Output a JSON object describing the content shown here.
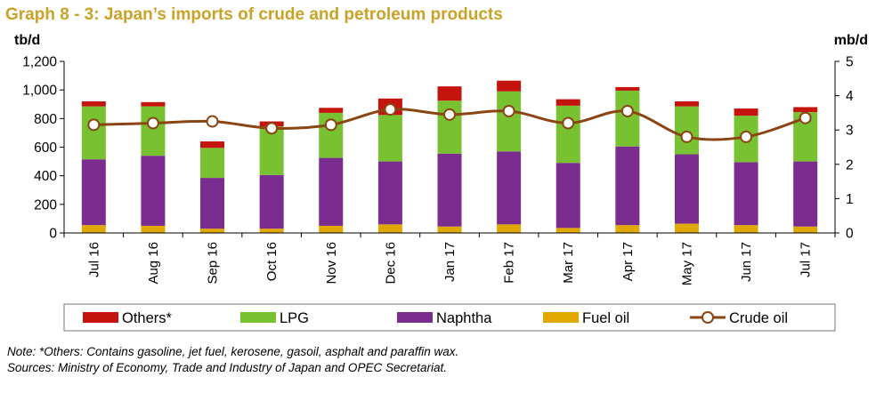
{
  "chart_data": {
    "type": "bar",
    "stacked": true,
    "title": "Graph 8 - 3: Japan’s imports of crude and petroleum products",
    "ylabel_left": "tb/d",
    "ylabel_right": "mb/d",
    "ylim_left": [
      0,
      1200
    ],
    "yticks_left": [
      0,
      200,
      400,
      600,
      800,
      1000,
      1200
    ],
    "ytick_labels_left": [
      "0",
      "200",
      "400",
      "600",
      "800",
      "1,000",
      "1,200"
    ],
    "ylim_right": [
      0,
      5
    ],
    "yticks_right": [
      0,
      1,
      2,
      3,
      4,
      5
    ],
    "ytick_labels_right": [
      "0",
      "1",
      "2",
      "3",
      "4",
      "5"
    ],
    "grid": false,
    "legend_placement": "bottom",
    "categories": [
      "Jul 16",
      "Aug 16",
      "Sep 16",
      "Oct 16",
      "Nov 16",
      "Dec 16",
      "Jan 17",
      "Feb 17",
      "Mar 17",
      "Apr 17",
      "May 17",
      "Jun 17",
      "Jul 17"
    ],
    "series": [
      {
        "name": "Fuel oil",
        "color": "#e0a800",
        "axis": "left",
        "values": [
          55,
          50,
          30,
          30,
          50,
          60,
          45,
          60,
          35,
          55,
          65,
          55,
          45
        ]
      },
      {
        "name": "Naphtha",
        "color": "#7b2c8f",
        "axis": "left",
        "values": [
          460,
          490,
          355,
          375,
          475,
          440,
          510,
          510,
          455,
          550,
          485,
          440,
          455
        ]
      },
      {
        "name": "LPG",
        "color": "#78c130",
        "axis": "left",
        "values": [
          370,
          345,
          210,
          340,
          315,
          325,
          370,
          420,
          400,
          390,
          335,
          325,
          345
        ]
      },
      {
        "name": "Others*",
        "color": "#c5140d",
        "axis": "left",
        "values": [
          35,
          30,
          45,
          35,
          35,
          115,
          100,
          75,
          45,
          25,
          35,
          50,
          35
        ]
      },
      {
        "name": "Crude oil",
        "type": "line",
        "color": "#8b4513",
        "axis": "right",
        "values": [
          3.15,
          3.2,
          3.25,
          3.05,
          3.15,
          3.6,
          3.45,
          3.55,
          3.2,
          3.55,
          2.8,
          2.8,
          3.35
        ]
      }
    ],
    "legend_order": [
      "Others*",
      "LPG",
      "Naphtha",
      "Fuel oil",
      "Crude oil"
    ]
  },
  "notes": [
    "Note: *Others: Contains gasoline, jet fuel, kerosene, gasoil, asphalt and paraffin wax.",
    "Sources: Ministry of Economy, Trade and Industry of Japan and OPEC Secretariat."
  ]
}
